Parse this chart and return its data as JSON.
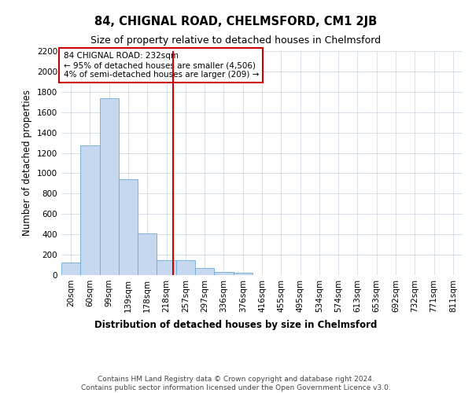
{
  "title": "84, CHIGNAL ROAD, CHELMSFORD, CM1 2JB",
  "subtitle": "Size of property relative to detached houses in Chelmsford",
  "xlabel": "Distribution of detached houses by size in Chelmsford",
  "ylabel": "Number of detached properties",
  "footer_line1": "Contains HM Land Registry data © Crown copyright and database right 2024.",
  "footer_line2": "Contains public sector information licensed under the Open Government Licence v3.0.",
  "categories": [
    "20sqm",
    "60sqm",
    "99sqm",
    "139sqm",
    "178sqm",
    "218sqm",
    "257sqm",
    "297sqm",
    "336sqm",
    "376sqm",
    "416sqm",
    "455sqm",
    "495sqm",
    "534sqm",
    "574sqm",
    "613sqm",
    "653sqm",
    "692sqm",
    "732sqm",
    "771sqm",
    "811sqm"
  ],
  "values": [
    120,
    1270,
    1740,
    940,
    410,
    150,
    145,
    72,
    32,
    20,
    0,
    0,
    0,
    0,
    0,
    0,
    0,
    0,
    0,
    0,
    0
  ],
  "bar_color": "#c5d8f0",
  "bar_edge_color": "#6aaad4",
  "vline_x": 5.35,
  "vline_color": "#cc0000",
  "annotation_text": "84 CHIGNAL ROAD: 232sqm\n← 95% of detached houses are smaller (4,506)\n4% of semi-detached houses are larger (209) →",
  "annotation_box_color": "#ffffff",
  "annotation_box_edge_color": "#cc0000",
  "ylim": [
    0,
    2200
  ],
  "yticks": [
    0,
    200,
    400,
    600,
    800,
    1000,
    1200,
    1400,
    1600,
    1800,
    2000,
    2200
  ],
  "bg_color": "#ffffff",
  "grid_color": "#c8d4e0",
  "title_fontsize": 10.5,
  "subtitle_fontsize": 9,
  "ylabel_fontsize": 8.5,
  "tick_fontsize": 7.5,
  "annot_fontsize": 7.5,
  "xlabel_fontsize": 8.5,
  "footer_fontsize": 6.5
}
